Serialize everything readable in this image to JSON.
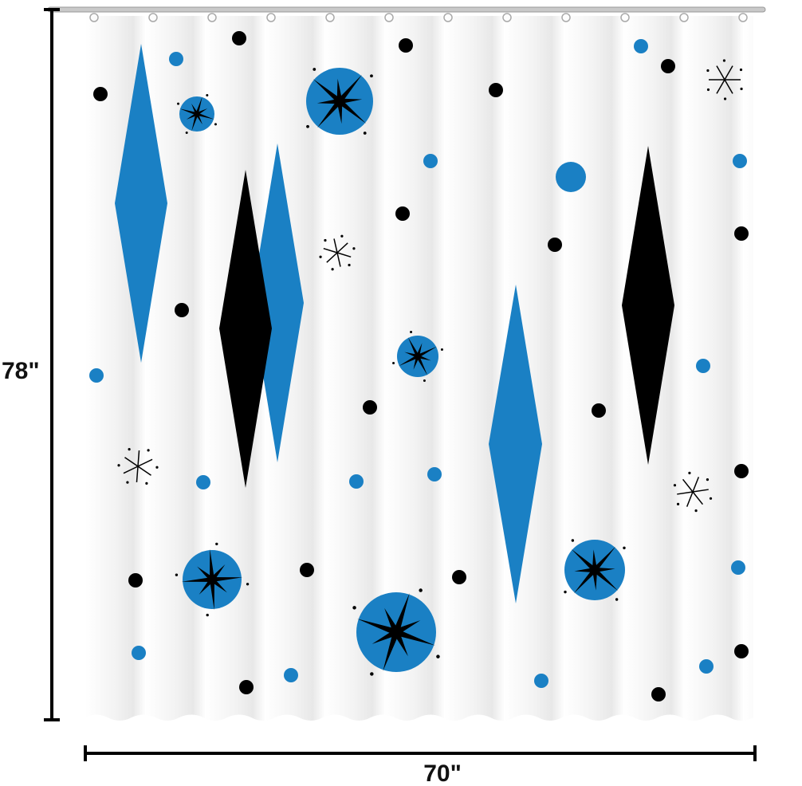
{
  "dimensions": {
    "height": "78\"",
    "width": "70\""
  }
}
